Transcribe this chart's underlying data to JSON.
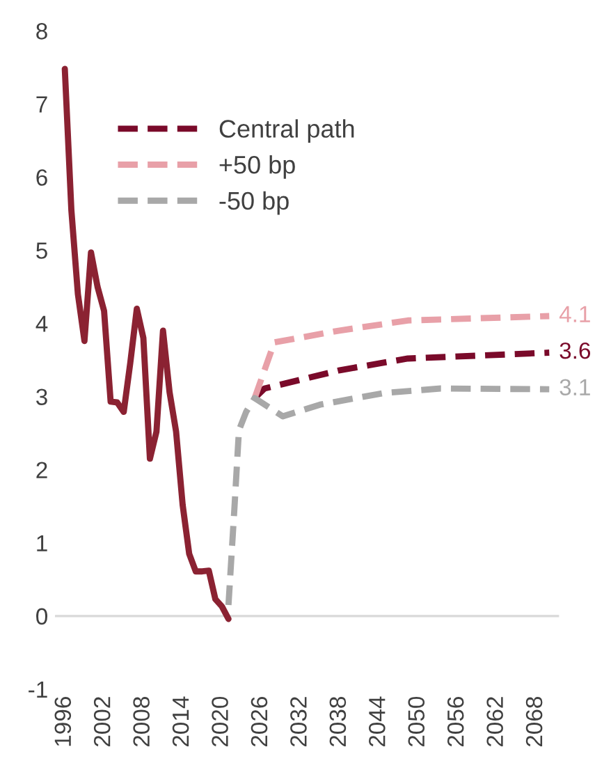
{
  "chart_data": {
    "type": "line",
    "xlim": [
      1994.5,
      2071.5
    ],
    "xticks": [
      1996,
      2002,
      2008,
      2014,
      2020,
      2026,
      2032,
      2038,
      2044,
      2050,
      2056,
      2062,
      2068
    ],
    "ylim": [
      -1,
      8
    ],
    "yticks": [
      -1,
      0,
      1,
      2,
      3,
      4,
      5,
      6,
      7,
      8
    ],
    "grid": false,
    "legend": "top left",
    "ref_lines": [
      {
        "axis": "y",
        "value": 0,
        "color": "#d9d9d9"
      }
    ],
    "series": [
      {
        "color": "#8b2232",
        "line_style": "solid",
        "x": [
          1996,
          1997,
          1998,
          1999,
          2000,
          2001,
          2002,
          2003,
          2004,
          2005,
          2006,
          2007,
          2008,
          2009,
          2010,
          2011,
          2012,
          2013,
          2014,
          2015,
          2016,
          2017,
          2018,
          2019,
          2020,
          2021
        ],
        "values": [
          7.48,
          5.55,
          4.4,
          3.76,
          4.97,
          4.5,
          4.17,
          2.93,
          2.92,
          2.79,
          3.46,
          4.2,
          3.8,
          2.15,
          2.52,
          3.9,
          3.06,
          2.52,
          1.52,
          0.85,
          0.61,
          0.61,
          0.62,
          0.23,
          0.13,
          -0.04
        ]
      },
      {
        "name": "Central path",
        "color": "#7a0a2a",
        "line_style": "dashed",
        "x": [
          2025,
          2026.5,
          2038,
          2048.4,
          2070
        ],
        "values": [
          2.98,
          3.11,
          3.36,
          3.52,
          3.6
        ],
        "value_labels": [
          null,
          null,
          null,
          null,
          "3.6"
        ]
      },
      {
        "name": "+50 bp",
        "color": "#e8a0a8",
        "line_style": "dashed",
        "x": [
          2025,
          2028,
          2037.8,
          2048.4,
          2070
        ],
        "values": [
          2.98,
          3.74,
          3.9,
          4.04,
          4.1
        ],
        "value_labels": [
          null,
          null,
          null,
          null,
          "4.1"
        ]
      },
      {
        "name": "-50 bp",
        "color": "#a8a8a8",
        "line_style": "dashed",
        "x": [
          2021,
          2021.9,
          2022.6,
          2023.7,
          2025,
          2029.3,
          2035,
          2044.9,
          2053.4,
          2070
        ],
        "values": [
          0.15,
          1.46,
          2.54,
          2.79,
          2.98,
          2.73,
          2.89,
          3.05,
          3.11,
          3.1
        ],
        "value_labels": [
          null,
          null,
          null,
          null,
          null,
          null,
          null,
          null,
          null,
          "3.1"
        ]
      }
    ]
  }
}
